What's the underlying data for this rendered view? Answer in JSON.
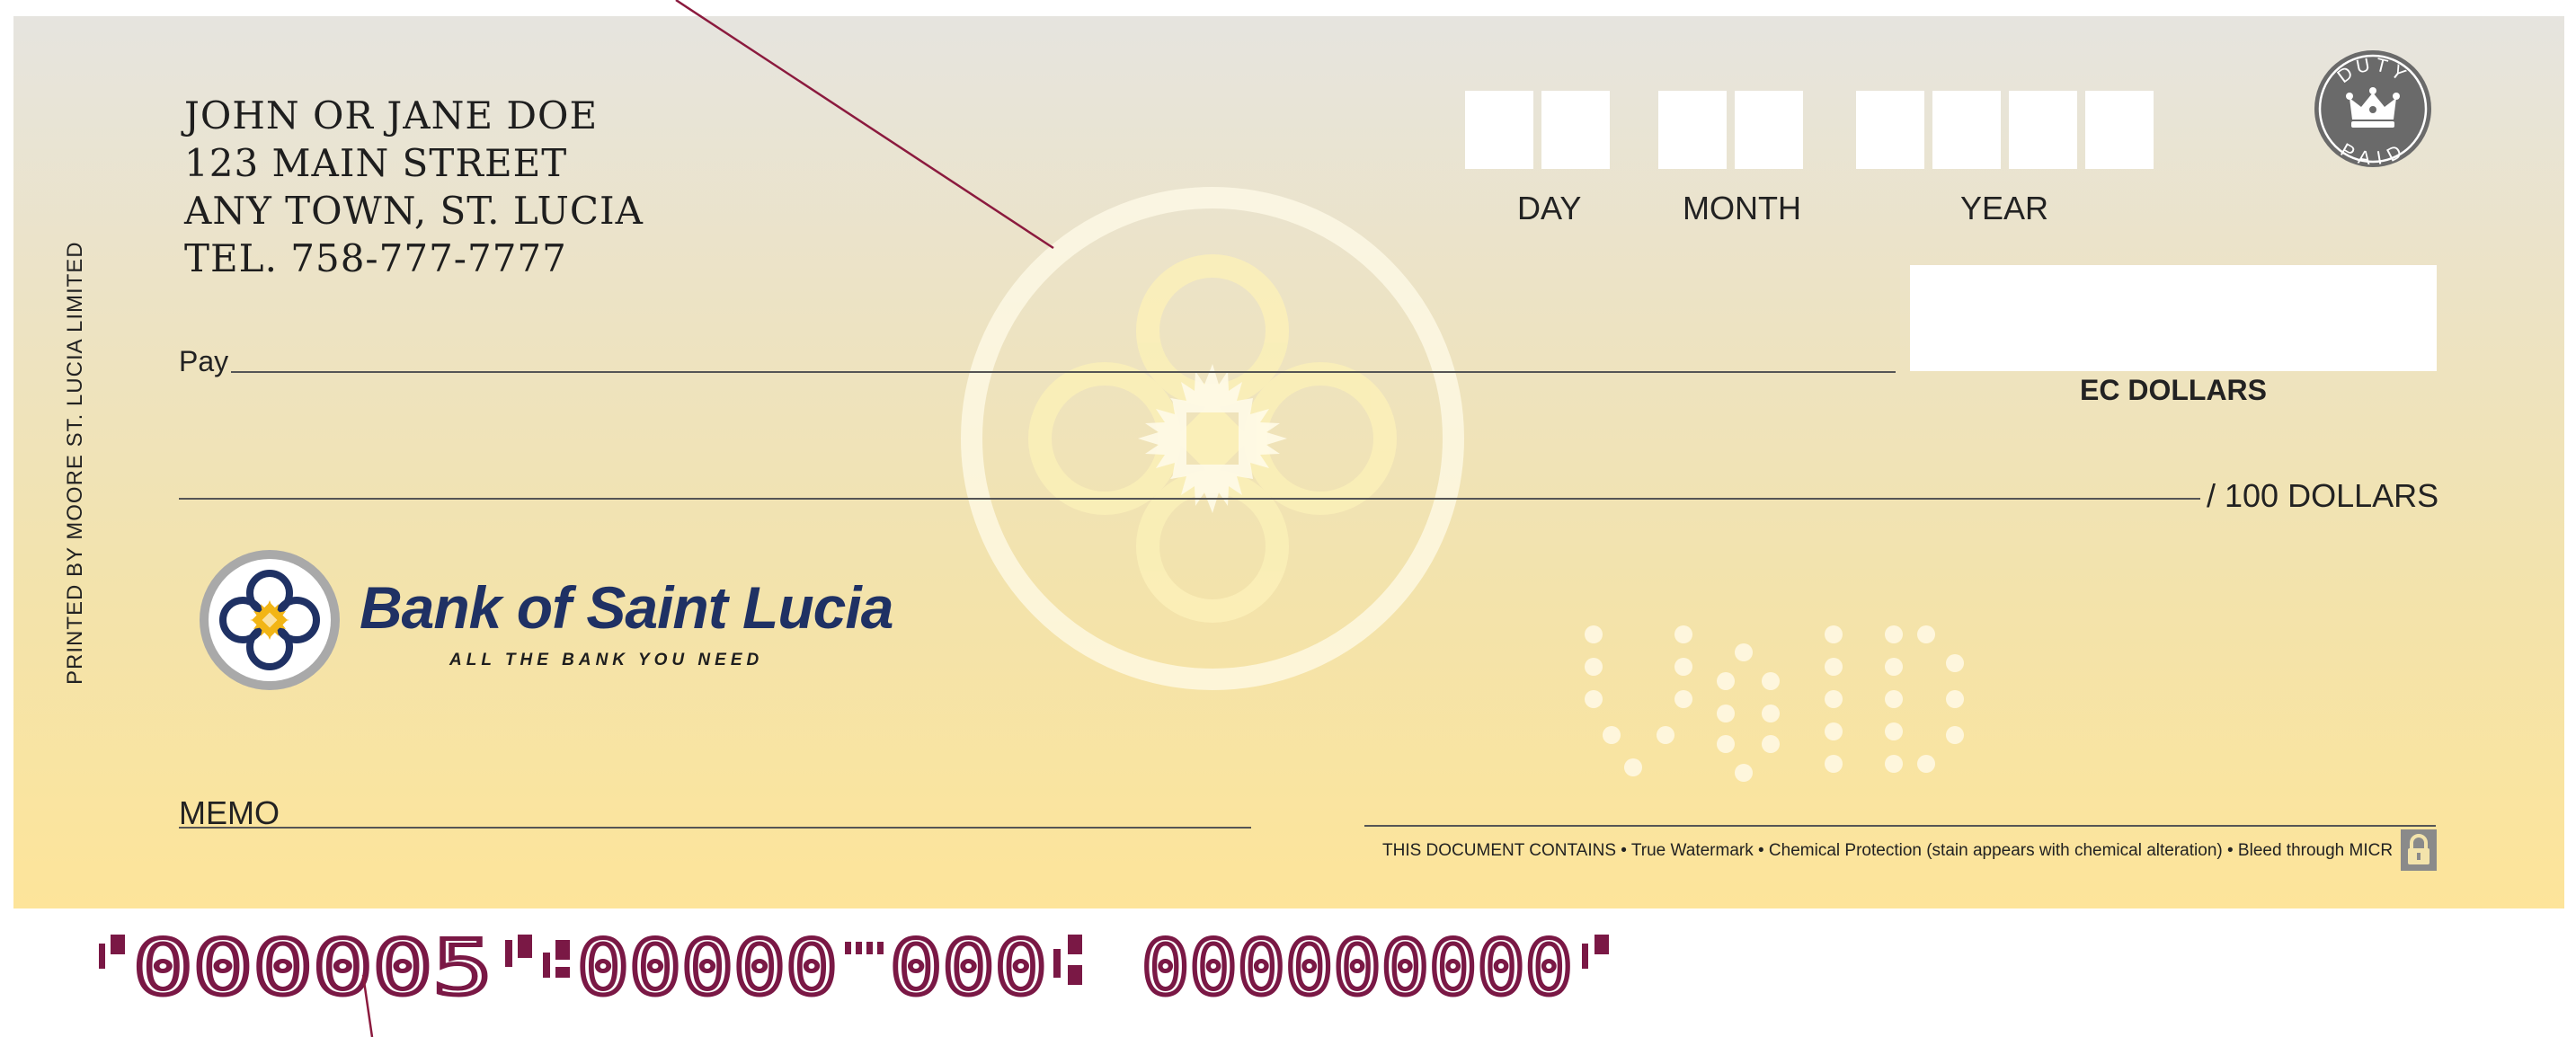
{
  "account_holder": {
    "name": "JOHN OR JANE DOE",
    "street": "123 MAIN STREET",
    "town": "ANY  TOWN, ST. LUCIA",
    "phone": "TEL. 758-777-7777"
  },
  "side_print": "PRINTED BY MOORE ST. LUCIA LIMITED",
  "date": {
    "day_label": "DAY",
    "month_label": "MONTH",
    "year_label": "YEAR"
  },
  "stamp": {
    "top_text": "DUTY",
    "bottom_text": "PAID"
  },
  "payee": {
    "pay_label": "Pay"
  },
  "amount": {
    "currency_label": "EC DOLLARS",
    "cents_label": "/ 100 DOLLARS"
  },
  "bank": {
    "name": "Bank of Saint Lucia",
    "tagline": "ALL THE BANK YOU NEED"
  },
  "void_text": "VOID",
  "memo": {
    "label": "MEMO"
  },
  "security_notice": "THIS DOCUMENT CONTAINS  •  True Watermark  •  Chemical Protection (stain appears with chemical alteration)  •  Bleed through MICR",
  "micr": {
    "cheque_number": "000005",
    "transit": "00000",
    "institution": "000",
    "account": "000000000"
  },
  "colors": {
    "bank_navy": "#1f3164",
    "bank_gold": "#f2b515",
    "micr_ink": "#7a1845",
    "leader_line": "#8b1a3e",
    "stamp_grey": "#6a6a6a"
  }
}
